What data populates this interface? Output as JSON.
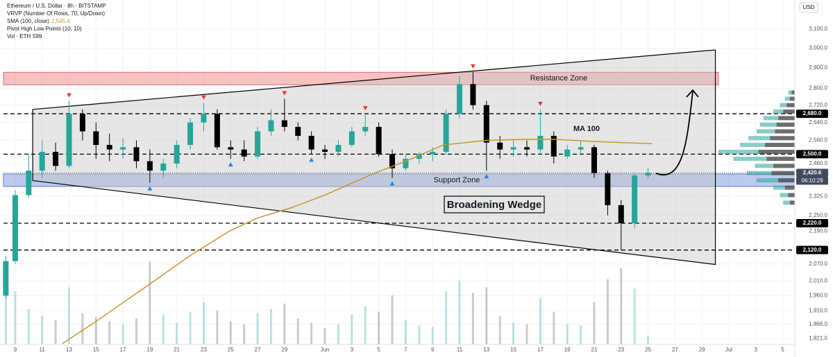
{
  "chart_data": {
    "type": "candlestick",
    "legend": {
      "symbol": "Ethereum / U.S. Dollar · 8h · BITSTAMP",
      "vrvp": "VRVP (Number Of Rows, 70, Up/Down)",
      "sma": "SMA (100, close)",
      "sma_value": "2,545.4",
      "pivots": "Pivot High Low Points (10, 10)",
      "vol": "Vol · ETH",
      "vol_value": "599"
    },
    "currency": "USD",
    "log_scale": true,
    "grid": true,
    "up_color": "#26a69a",
    "down_color": "#000000",
    "x": [
      -0.7,
      0,
      1,
      2,
      3,
      4,
      5,
      6,
      7,
      8,
      9,
      10,
      11,
      12,
      13,
      14,
      15,
      16,
      17,
      18,
      19,
      20,
      21,
      22,
      23,
      24,
      25,
      26,
      27,
      28,
      29,
      30,
      31,
      32,
      33,
      34,
      35,
      36,
      37,
      38,
      39,
      40,
      41,
      42,
      43,
      44,
      45,
      46,
      47
    ],
    "open": [
      1960,
      2080,
      2330,
      2430,
      2510,
      2450,
      2680,
      2600,
      2540,
      2520,
      2530,
      2470,
      2430,
      2460,
      2540,
      2640,
      2680,
      2530,
      2520,
      2490,
      2600,
      2650,
      2620,
      2580,
      2520,
      2510,
      2540,
      2600,
      2620,
      2500,
      2440,
      2480,
      2500,
      2510,
      2680,
      2820,
      2720,
      2550,
      2520,
      2530,
      2520,
      2580,
      2490,
      2520,
      2530,
      2420,
      2290,
      2220,
      2410
    ],
    "high": [
      2100,
      2350,
      2500,
      2560,
      2550,
      2740,
      2700,
      2640,
      2590,
      2570,
      2560,
      2520,
      2480,
      2560,
      2660,
      2730,
      2700,
      2560,
      2560,
      2620,
      2700,
      2750,
      2640,
      2600,
      2540,
      2560,
      2620,
      2680,
      2640,
      2520,
      2500,
      2510,
      2530,
      2700,
      2860,
      2880,
      2740,
      2580,
      2560,
      2560,
      2700,
      2600,
      2540,
      2560,
      2540,
      2430,
      2310,
      2420,
      2440
    ],
    "low": [
      1950,
      2070,
      2320,
      2400,
      2430,
      2440,
      2560,
      2480,
      2470,
      2480,
      2440,
      2380,
      2400,
      2440,
      2520,
      2600,
      2520,
      2480,
      2470,
      2480,
      2580,
      2600,
      2560,
      2500,
      2480,
      2490,
      2530,
      2580,
      2490,
      2400,
      2430,
      2460,
      2470,
      2500,
      2660,
      2700,
      2430,
      2480,
      2490,
      2490,
      2500,
      2460,
      2480,
      2500,
      2400,
      2250,
      2120,
      2200,
      2400
    ],
    "close": [
      2080,
      2330,
      2430,
      2510,
      2450,
      2680,
      2600,
      2540,
      2520,
      2530,
      2470,
      2430,
      2460,
      2540,
      2640,
      2680,
      2530,
      2520,
      2490,
      2600,
      2650,
      2620,
      2580,
      2520,
      2510,
      2540,
      2600,
      2620,
      2500,
      2440,
      2480,
      2500,
      2510,
      2680,
      2820,
      2720,
      2550,
      2520,
      2530,
      2520,
      2580,
      2490,
      2520,
      2530,
      2420,
      2290,
      2220,
      2410,
      2420.6
    ],
    "volume": [
      5200,
      3900,
      2600,
      2100,
      1800,
      4200,
      2300,
      2000,
      1700,
      1500,
      1900,
      6100,
      2200,
      1600,
      2400,
      3100,
      2500,
      1700,
      1500,
      2300,
      2600,
      3000,
      1900,
      1600,
      1200,
      1500,
      2200,
      2800,
      2400,
      3600,
      1800,
      1400,
      1300,
      3900,
      4700,
      3800,
      4200,
      2100,
      1600,
      1500,
      3400,
      2400,
      1500,
      1400,
      3100,
      4800,
      5600,
      4100,
      599
    ],
    "sma": {
      "name": "MA 100",
      "color": "#c8962e",
      "x": [
        3.5,
        6,
        9.7,
        13,
        15.9,
        18,
        20.5,
        23,
        26.7,
        29,
        31.8,
        35,
        38,
        40,
        43,
        47.3
      ],
      "values": [
        1805,
        1875,
        1990,
        2100,
        2190,
        2240,
        2280,
        2330,
        2420,
        2470,
        2540,
        2560,
        2565,
        2565,
        2555,
        2545.4
      ]
    },
    "pivot_highs": {
      "x": [
        4,
        14,
        20,
        26,
        34,
        39
      ],
      "values": [
        2740,
        2730,
        2750,
        2680,
        2880,
        2700
      ]
    },
    "pivot_lows": {
      "x": [
        10,
        16,
        22,
        28,
        35
      ],
      "values": [
        2380,
        2480,
        2500,
        2400,
        2430
      ]
    },
    "levels": [
      2680,
      2500,
      2220,
      2120
    ],
    "resistance_zone": {
      "label": "Resistance Zone",
      "range": [
        2817,
        2878
      ]
    },
    "support_zone": {
      "label": "Support Zone",
      "range": [
        2365,
        2416
      ]
    },
    "wedge": {
      "label": "Broadening Wedge",
      "x": [
        1.3,
        52,
        52,
        1.3
      ],
      "values": [
        2700,
        2991,
        2068,
        2389
      ]
    },
    "volume_profile": {
      "prices": [
        2300,
        2330,
        2360,
        2390,
        2420,
        2450,
        2480,
        2510,
        2540,
        2570,
        2600,
        2630,
        2660,
        2690,
        2720,
        2750,
        2780
      ],
      "up": [
        8,
        10,
        14,
        26,
        30,
        22,
        40,
        48,
        30,
        26,
        22,
        20,
        18,
        12,
        8,
        6,
        4
      ],
      "down": [
        6,
        8,
        12,
        20,
        28,
        26,
        34,
        44,
        36,
        30,
        24,
        22,
        20,
        14,
        10,
        6,
        4
      ]
    },
    "price_labels": [
      {
        "value": 2680,
        "label": "2,680.0"
      },
      {
        "value": 2500,
        "label": "2,500.0"
      },
      {
        "value": 2420.6,
        "label": "2,420.6"
      },
      {
        "value": 2220,
        "label": "2,220.0"
      },
      {
        "value": 2120,
        "label": "2,120.0"
      }
    ],
    "countdown": "06:10:29",
    "xlim": [
      -1.13,
      57.9
    ],
    "xticks": [
      {
        "value": 0,
        "label": "9"
      },
      {
        "value": 2,
        "label": "11"
      },
      {
        "value": 4,
        "label": "13"
      },
      {
        "value": 6,
        "label": "15"
      },
      {
        "value": 8,
        "label": "17"
      },
      {
        "value": 10,
        "label": "19"
      },
      {
        "value": 12,
        "label": "21"
      },
      {
        "value": 14,
        "label": "23"
      },
      {
        "value": 16,
        "label": "25"
      },
      {
        "value": 18,
        "label": "27"
      },
      {
        "value": 20,
        "label": "29"
      },
      {
        "value": 23,
        "label": "Jun"
      },
      {
        "value": 25,
        "label": "3"
      },
      {
        "value": 27,
        "label": "5"
      },
      {
        "value": 29,
        "label": "7"
      },
      {
        "value": 31,
        "label": "9"
      },
      {
        "value": 33,
        "label": "11"
      },
      {
        "value": 35,
        "label": "13"
      },
      {
        "value": 37,
        "label": "15"
      },
      {
        "value": 39,
        "label": "17"
      },
      {
        "value": 41,
        "label": "19"
      },
      {
        "value": 43,
        "label": "21"
      },
      {
        "value": 45,
        "label": "23"
      },
      {
        "value": 47,
        "label": "25"
      },
      {
        "value": 49,
        "label": "27"
      },
      {
        "value": 51,
        "label": "29"
      },
      {
        "value": 53,
        "label": "Jul"
      },
      {
        "value": 55,
        "label": "3"
      },
      {
        "value": 57,
        "label": "5"
      }
    ],
    "ylim": [
      1802,
      3259
    ],
    "yticks": [
      {
        "value": 3100,
        "label": "3,100.0"
      },
      {
        "value": 3000,
        "label": "3,000.0"
      },
      {
        "value": 2900,
        "label": "2,900.0"
      },
      {
        "value": 2800,
        "label": "2,800.0"
      },
      {
        "value": 2720,
        "label": "2,720.0"
      },
      {
        "value": 2640,
        "label": "2,640.0"
      },
      {
        "value": 2560,
        "label": "2,560.0"
      },
      {
        "value": 2460,
        "label": "2,460.0"
      },
      {
        "value": 2325,
        "label": "2,325.0"
      },
      {
        "value": 2250,
        "label": "2,250.0"
      },
      {
        "value": 2190,
        "label": "2,190.0"
      },
      {
        "value": 2070,
        "label": "2,070.0"
      },
      {
        "value": 2010,
        "label": "2,010.0"
      },
      {
        "value": 1960,
        "label": "1,960.0"
      },
      {
        "value": 1910,
        "label": "1,910.0"
      },
      {
        "value": 1866,
        "label": "1,866.0"
      },
      {
        "value": 1821,
        "label": "1,821.0"
      }
    ]
  }
}
